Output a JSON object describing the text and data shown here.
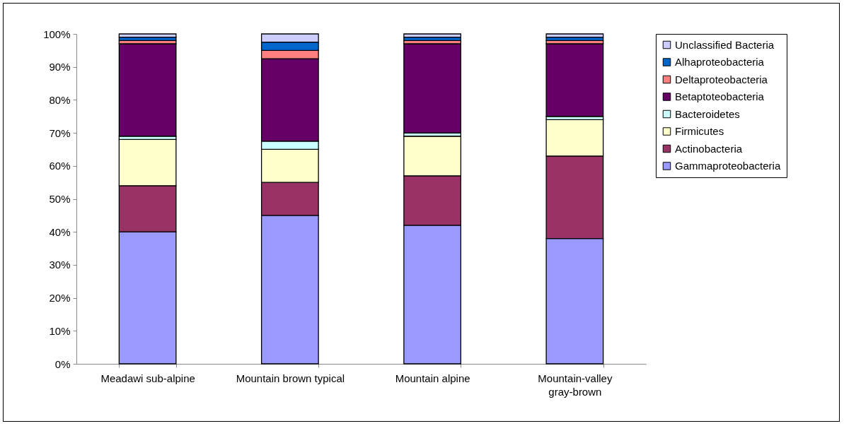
{
  "chart_data": {
    "type": "bar",
    "stacked": true,
    "categories": [
      "Meadawi sub-alpine",
      "Mountain brown typical",
      "Mountain alpine",
      "Mountain-valley gray-brown"
    ],
    "series": [
      {
        "name": "Gammaproteobacteria",
        "color": "#9999ff",
        "values": [
          40,
          45,
          42,
          38
        ]
      },
      {
        "name": "Actinobacteria",
        "color": "#993366",
        "values": [
          14,
          10,
          15,
          25
        ]
      },
      {
        "name": "Firmicutes",
        "color": "#ffffcc",
        "values": [
          14,
          10,
          12,
          11
        ]
      },
      {
        "name": "Bacteroidetes",
        "color": "#ccffff",
        "values": [
          1,
          2.5,
          1,
          1
        ]
      },
      {
        "name": "Betaptoteobacteria",
        "color": "#660066",
        "values": [
          28,
          25,
          27,
          22
        ]
      },
      {
        "name": "Deltaproteobacteria",
        "color": "#ff8080",
        "values": [
          1,
          2.5,
          1,
          1
        ]
      },
      {
        "name": "Alhaproteobacteria",
        "color": "#0066cc",
        "values": [
          1,
          2.5,
          1,
          1
        ]
      },
      {
        "name": "Unclassified Bacteria",
        "color": "#ccccff",
        "values": [
          1,
          2.5,
          1,
          1
        ]
      }
    ],
    "ylim": [
      0,
      100
    ],
    "yticks": [
      {
        "value": 0,
        "label": "0%"
      },
      {
        "value": 10,
        "label": "10%"
      },
      {
        "value": 20,
        "label": "20%"
      },
      {
        "value": 30,
        "label": "30%"
      },
      {
        "value": 40,
        "label": "40%"
      },
      {
        "value": 50,
        "label": "50%"
      },
      {
        "value": 60,
        "label": "60%"
      },
      {
        "value": 70,
        "label": "70%"
      },
      {
        "value": 80,
        "label": "80%"
      },
      {
        "value": 90,
        "label": "90%"
      },
      {
        "value": 100,
        "label": "100%"
      }
    ],
    "grid": false,
    "legend": "right"
  }
}
